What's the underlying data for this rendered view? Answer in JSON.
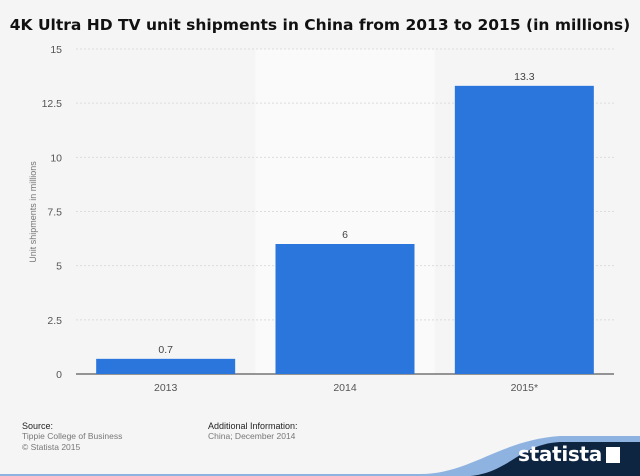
{
  "title": "4K Ultra HD TV unit shipments in China from 2013 to 2015 (in millions)",
  "chart_data": {
    "type": "bar",
    "title": "4K Ultra HD TV unit shipments in China from 2013 to 2015 (in millions)",
    "categories": [
      "2013",
      "2014",
      "2015*"
    ],
    "values": [
      0.7,
      6,
      13.3
    ],
    "data_labels": [
      "0.7",
      "6",
      "13.3"
    ],
    "ylabel": "Unit shipments in millions",
    "xlabel": "",
    "ylim": [
      0,
      15
    ],
    "yticks": [
      "0",
      "2.5",
      "5",
      "7.5",
      "10",
      "12.5",
      "15"
    ],
    "grid": true,
    "bar_color": "#2a76dd",
    "highlight_band_index": 1
  },
  "footer": {
    "source_label": "Source:",
    "source_name": "Tippie College of Business",
    "copyright": "© Statista 2015",
    "info_label": "Additional Information:",
    "info_text": "China; December 2014"
  },
  "brand": {
    "name": "statista",
    "color": "#0d2540"
  }
}
